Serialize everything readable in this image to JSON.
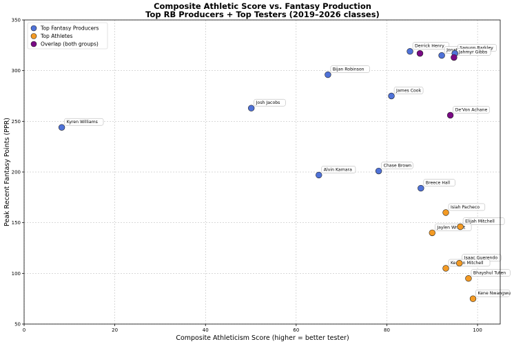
{
  "chart_data": {
    "type": "scatter",
    "title": "Composite Athletic Score vs. Fantasy Production",
    "subtitle": "Top RB Producers + Top Testers (2019–2026 classes)",
    "xlabel": "Composite Athleticism Score (higher = better tester)",
    "ylabel": "Peak Recent Fantasy Points (PPR)",
    "xlim": [
      0,
      105
    ],
    "ylim": [
      50,
      350
    ],
    "xticks": [
      0,
      20,
      40,
      60,
      80,
      100
    ],
    "yticks": [
      50,
      100,
      150,
      200,
      250,
      300,
      350
    ],
    "grid": true,
    "legend_position": "top-left",
    "series": [
      {
        "name": "Top Fantasy Producers",
        "color": "#4f72d8",
        "points": [
          {
            "label": "Kyren Williams",
            "x": 8.3,
            "y": 244
          },
          {
            "label": "Josh Jacobs",
            "x": 50.1,
            "y": 263
          },
          {
            "label": "Bijan Robinson",
            "x": 67.0,
            "y": 296
          },
          {
            "label": "James Cook",
            "x": 81.0,
            "y": 275
          },
          {
            "label": "Derrick Henry",
            "x": 85.1,
            "y": 319
          },
          {
            "label": "Jonathan Taylor",
            "x": 92.1,
            "y": 315
          },
          {
            "label": "Saquon Barkley",
            "x": 95.0,
            "y": 317
          },
          {
            "label": "Alvin Kamara",
            "x": 65.0,
            "y": 197
          },
          {
            "label": "Chase Brown",
            "x": 78.2,
            "y": 201
          },
          {
            "label": "Breece Hall",
            "x": 87.5,
            "y": 184
          }
        ]
      },
      {
        "name": "Top Athletes",
        "color": "#f39a24",
        "points": [
          {
            "label": "Isiah Pacheco",
            "x": 93.0,
            "y": 160
          },
          {
            "label": "Elijah Mitchell",
            "x": 96.2,
            "y": 146
          },
          {
            "label": "Jaylen Wright",
            "x": 90.0,
            "y": 140
          },
          {
            "label": "Isaac Guerendo",
            "x": 96.0,
            "y": 110
          },
          {
            "label": "Keaton Mitchell",
            "x": 93.0,
            "y": 105
          },
          {
            "label": "Bhayshul Tuten",
            "x": 98.0,
            "y": 95
          },
          {
            "label": "Kene Nwangwu",
            "x": 99.0,
            "y": 75
          }
        ]
      },
      {
        "name": "Overlap (both groups)",
        "color": "#7a0a85",
        "points": [
          {
            "label": "",
            "x": 87.3,
            "y": 317
          },
          {
            "label": "Jahmyr Gibbs",
            "x": 94.8,
            "y": 313
          },
          {
            "label": "De'Von Achane",
            "x": 94.0,
            "y": 256
          }
        ]
      }
    ]
  }
}
